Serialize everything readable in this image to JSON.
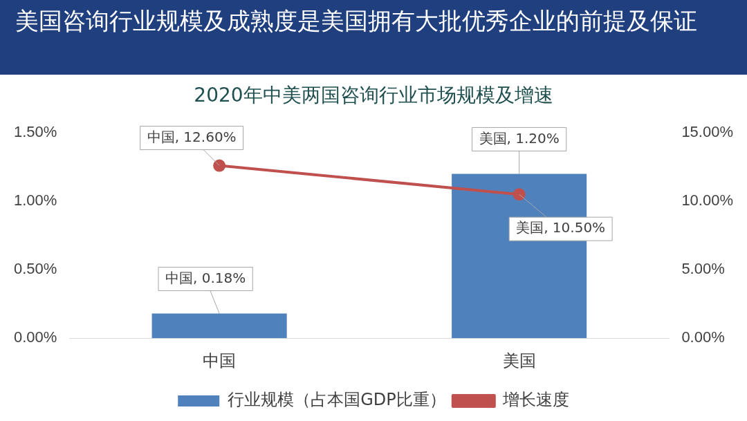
{
  "chart_data": {
    "type": "bar",
    "title": "美国咨询行业规模及成熟度是美国拥有大批优秀企业的前提及保证",
    "subtitle": "2020年中美两国咨询行业市场规模及增速",
    "categories": [
      "中国",
      "美国"
    ],
    "series": [
      {
        "name": "行业规模（占本国GDP比重）",
        "color": "#4f81bd",
        "values": [
          0.18,
          1.2
        ],
        "value_labels": [
          "中国, 0.18%",
          "美国, 1.20%"
        ]
      },
      {
        "name": "增长速度",
        "type": "line",
        "axis": "y2",
        "color": "#c0504d",
        "values": [
          12.6,
          10.5
        ],
        "value_labels": [
          "中国, 12.60%",
          "美国, 10.50%"
        ]
      }
    ],
    "ylim": [
      0,
      1.5
    ],
    "yticks": [
      {
        "value": 0,
        "label": "0.00%"
      },
      {
        "value": 0.5,
        "label": "0.50%"
      },
      {
        "value": 1,
        "label": "1.00%"
      },
      {
        "value": 1.5,
        "label": "1.50%"
      }
    ],
    "y2lim": [
      0,
      15
    ],
    "y2ticks": [
      {
        "value": 0,
        "label": "0.00%"
      },
      {
        "value": 5,
        "label": "5.00%"
      },
      {
        "value": 10,
        "label": "10.00%"
      },
      {
        "value": 15,
        "label": "15.00%"
      }
    ],
    "legend": "bottom",
    "marker": "circle",
    "line_style": "solid",
    "grid": false
  }
}
